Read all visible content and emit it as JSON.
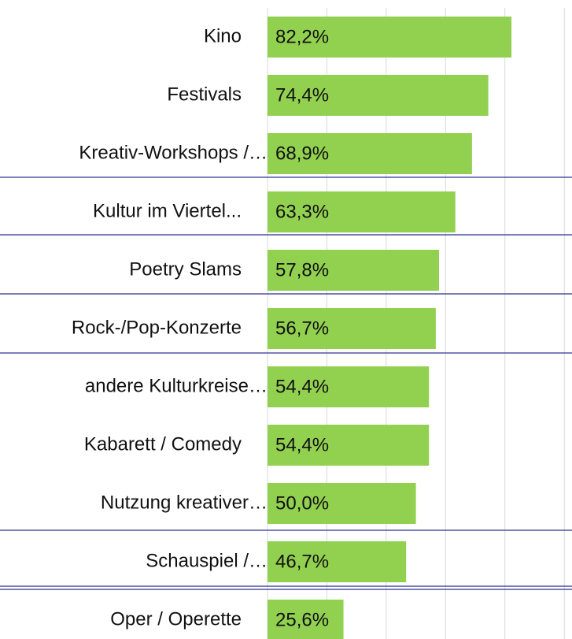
{
  "chart_data": {
    "type": "hbar",
    "categories": [
      "Kino",
      "Festivals",
      "Kreativ-Workshops /…",
      "Kultur im Viertel...",
      "Poetry Slams",
      "Rock-/Pop-Konzerte",
      "andere Kulturkreise…",
      "Kabarett / Comedy",
      "Nutzung kreativer…",
      "Schauspiel /…",
      "Oper / Operette"
    ],
    "values": [
      82.2,
      74.4,
      68.9,
      63.3,
      57.8,
      56.7,
      54.4,
      54.4,
      50.0,
      46.7,
      25.6
    ],
    "value_labels": [
      "82,2%",
      "74,4%",
      "68,9%",
      "63,3%",
      "57,8%",
      "56,7%",
      "54,4%",
      "54,4%",
      "50,0%",
      "46,7%",
      "25,6%"
    ],
    "color": "#92d050",
    "xlim": [
      0,
      102.6
    ],
    "xticks": [
      0,
      20,
      40,
      60,
      80,
      100
    ],
    "grid": true
  }
}
